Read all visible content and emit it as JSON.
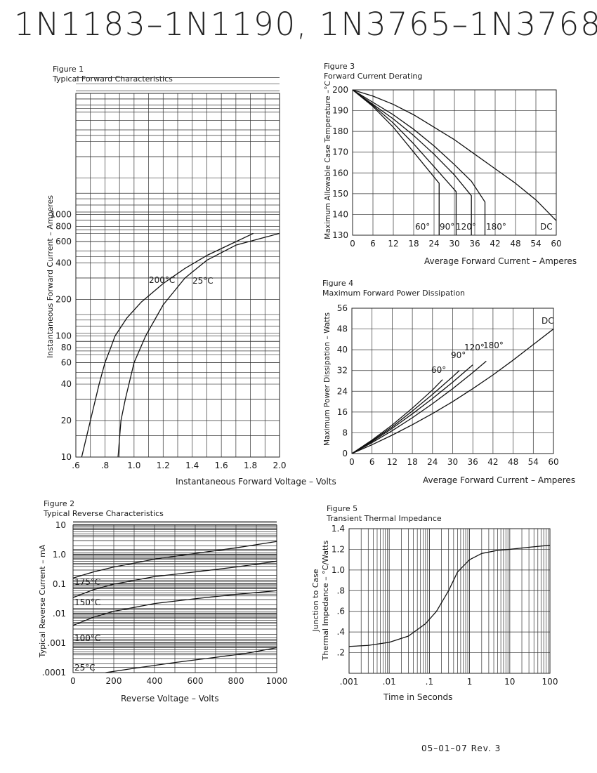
{
  "page_title": "1N1183–1N1190, 1N3765–1N3768",
  "footer": "05–01–07 Rev. 3",
  "figures": {
    "fig1": {
      "number": "Figure 1",
      "caption": "Typical Forward Characteristics"
    },
    "fig2": {
      "number": "Figure 2",
      "caption": "Typical Reverse Characteristics"
    },
    "fig3": {
      "number": "Figure 3",
      "caption": "Forward Current Derating"
    },
    "fig4": {
      "number": "Figure 4",
      "caption": "Maximum Forward Power Dissipation"
    },
    "fig5": {
      "number": "Figure 5",
      "caption": "Transient Thermal Impedance"
    }
  },
  "chart_data": [
    {
      "id": "fig1",
      "type": "line",
      "title": "Typical Forward Characteristics",
      "xlabel": "Instantaneous Forward Voltage – Volts",
      "ylabel": "Instantaneous Forward Current – Amperes",
      "x_scale": "linear",
      "y_scale": "log",
      "xlim": [
        0.6,
        2.0
      ],
      "ylim": [
        10,
        10000
      ],
      "grid": true,
      "xticks": [
        0.6,
        0.8,
        1.0,
        1.2,
        1.4,
        1.6,
        1.8,
        2.0
      ],
      "xtick_labels": [
        ".6",
        ".8",
        "1.0",
        "1.2",
        "1.4",
        "1.6",
        "1.8",
        "2.0"
      ],
      "yticks": [
        10,
        20,
        40,
        60,
        80,
        100,
        200,
        400,
        600,
        800,
        1000
      ],
      "ytick_labels": [
        "10",
        "20",
        "40",
        "60",
        "80",
        "100",
        "200",
        "400",
        "600",
        "800",
        "1000"
      ],
      "series": [
        {
          "name": "200°C",
          "points": [
            [
              0.64,
              10
            ],
            [
              0.7,
              20
            ],
            [
              0.76,
              40
            ],
            [
              0.8,
              60
            ],
            [
              0.84,
              80
            ],
            [
              0.87,
              100
            ],
            [
              0.95,
              140
            ],
            [
              1.05,
              190
            ],
            [
              1.2,
              270
            ],
            [
              1.35,
              360
            ],
            [
              1.5,
              460
            ],
            [
              1.65,
              560
            ],
            [
              1.82,
              700
            ]
          ]
        },
        {
          "name": "25°C",
          "points": [
            [
              0.89,
              10
            ],
            [
              0.91,
              20
            ],
            [
              0.94,
              30
            ],
            [
              1.0,
              60
            ],
            [
              1.08,
              100
            ],
            [
              1.2,
              180
            ],
            [
              1.35,
              300
            ],
            [
              1.5,
              420
            ],
            [
              1.7,
              560
            ],
            [
              2.0,
              700
            ]
          ]
        }
      ]
    },
    {
      "id": "fig2",
      "type": "line",
      "title": "Typical Reverse Characteristics",
      "xlabel": "Reverse Voltage – Volts",
      "ylabel": "Typical Reverse Current – mA",
      "x_scale": "linear",
      "y_scale": "log",
      "xlim": [
        0,
        1000
      ],
      "ylim": [
        0.0001,
        10
      ],
      "grid": true,
      "xticks": [
        0,
        200,
        400,
        600,
        800,
        1000
      ],
      "xtick_labels": [
        "0",
        "200",
        "400",
        "600",
        "800",
        "1000"
      ],
      "yticks": [
        0.0001,
        0.001,
        0.01,
        0.1,
        1,
        10
      ],
      "ytick_labels": [
        ".0001",
        ".001",
        ".01",
        "0.1",
        "1.0",
        "10"
      ],
      "series": [
        {
          "name": "175°C",
          "points": [
            [
              0,
              0.16
            ],
            [
              100,
              0.26
            ],
            [
              200,
              0.38
            ],
            [
              400,
              0.7
            ],
            [
              600,
              1.1
            ],
            [
              800,
              1.7
            ],
            [
              1000,
              2.8
            ]
          ]
        },
        {
          "name": "150°C",
          "points": [
            [
              0,
              0.035
            ],
            [
              100,
              0.065
            ],
            [
              200,
              0.1
            ],
            [
              400,
              0.18
            ],
            [
              600,
              0.26
            ],
            [
              800,
              0.38
            ],
            [
              1000,
              0.6
            ]
          ]
        },
        {
          "name": "100°C",
          "points": [
            [
              0,
              0.004
            ],
            [
              100,
              0.0075
            ],
            [
              200,
              0.012
            ],
            [
              400,
              0.022
            ],
            [
              600,
              0.032
            ],
            [
              800,
              0.045
            ],
            [
              1000,
              0.06
            ]
          ]
        },
        {
          "name": "25°C",
          "points": [
            [
              160,
              0.0001
            ],
            [
              300,
              0.00014
            ],
            [
              500,
              0.00022
            ],
            [
              700,
              0.00033
            ],
            [
              850,
              0.00045
            ],
            [
              1000,
              0.0007
            ]
          ]
        }
      ]
    },
    {
      "id": "fig3",
      "type": "line",
      "title": "Forward Current Derating",
      "xlabel": "Average Forward Current – Amperes",
      "ylabel": "Maximum Allowable Case Temperature –°C",
      "x_scale": "linear",
      "y_scale": "linear",
      "xlim": [
        0,
        60
      ],
      "ylim": [
        130,
        200
      ],
      "grid": true,
      "xticks": [
        0,
        6,
        12,
        18,
        24,
        30,
        36,
        42,
        48,
        54,
        60
      ],
      "yticks": [
        130,
        140,
        150,
        160,
        170,
        180,
        190,
        200
      ],
      "series": [
        {
          "name": "60°",
          "points": [
            [
              0,
              200
            ],
            [
              6,
              192
            ],
            [
              12,
              182
            ],
            [
              18,
              170
            ],
            [
              25.5,
              155
            ],
            [
              25.5,
              130
            ]
          ]
        },
        {
          "name": "90°",
          "points": [
            [
              0,
              200
            ],
            [
              6,
              192.5
            ],
            [
              12,
              184
            ],
            [
              18,
              174
            ],
            [
              24,
              163
            ],
            [
              30.5,
              151
            ],
            [
              30.5,
              130
            ]
          ]
        },
        {
          "name": "120°",
          "points": [
            [
              0,
              200
            ],
            [
              6,
              193
            ],
            [
              12,
              186
            ],
            [
              18,
              178
            ],
            [
              24,
              169
            ],
            [
              30,
              159
            ],
            [
              35,
              149
            ],
            [
              35,
              130
            ]
          ]
        },
        {
          "name": "180°",
          "points": [
            [
              0,
              200
            ],
            [
              6,
              194
            ],
            [
              12,
              188
            ],
            [
              18,
              181
            ],
            [
              24,
              173
            ],
            [
              30,
              164
            ],
            [
              35,
              156
            ],
            [
              39,
              146
            ],
            [
              39,
              130
            ]
          ]
        },
        {
          "name": "DC",
          "points": [
            [
              0,
              200
            ],
            [
              6,
              197
            ],
            [
              12,
              193
            ],
            [
              18,
              188
            ],
            [
              24,
              182
            ],
            [
              30,
              176
            ],
            [
              36,
              169
            ],
            [
              42,
              162
            ],
            [
              48,
              155
            ],
            [
              54,
              147
            ],
            [
              60,
              137
            ]
          ]
        }
      ]
    },
    {
      "id": "fig4",
      "type": "line",
      "title": "Maximum Forward Power Dissipation",
      "xlabel": "Average Forward Current – Amperes",
      "ylabel": "Maximum Power Dissipation – Watts",
      "x_scale": "linear",
      "y_scale": "linear",
      "xlim": [
        0,
        60
      ],
      "ylim": [
        0,
        56
      ],
      "grid": true,
      "xticks": [
        0,
        6,
        12,
        18,
        24,
        30,
        36,
        42,
        48,
        54,
        60
      ],
      "yticks": [
        0,
        8,
        16,
        24,
        32,
        40,
        48,
        56
      ],
      "series": [
        {
          "name": "60°",
          "points": [
            [
              0,
              0
            ],
            [
              6,
              5.2
            ],
            [
              12,
              11
            ],
            [
              18,
              17.5
            ],
            [
              24,
              24.5
            ],
            [
              27,
              28.5
            ]
          ]
        },
        {
          "name": "90°",
          "points": [
            [
              0,
              0
            ],
            [
              6,
              4.9
            ],
            [
              12,
              10.3
            ],
            [
              18,
              16.4
            ],
            [
              24,
              22.8
            ],
            [
              30,
              29.6
            ],
            [
              32,
              32
            ]
          ]
        },
        {
          "name": "120°",
          "points": [
            [
              0,
              0
            ],
            [
              6,
              4.6
            ],
            [
              12,
              9.7
            ],
            [
              18,
              15.3
            ],
            [
              24,
              21.2
            ],
            [
              30,
              27.5
            ],
            [
              36,
              34.2
            ]
          ]
        },
        {
          "name": "180°",
          "points": [
            [
              0,
              0
            ],
            [
              6,
              4.2
            ],
            [
              12,
              8.8
            ],
            [
              18,
              13.8
            ],
            [
              24,
              19.2
            ],
            [
              30,
              25
            ],
            [
              36,
              31.2
            ],
            [
              40,
              35.6
            ]
          ]
        },
        {
          "name": "DC",
          "points": [
            [
              0,
              0
            ],
            [
              6,
              3.4
            ],
            [
              12,
              7.1
            ],
            [
              18,
              11.1
            ],
            [
              24,
              15.4
            ],
            [
              30,
              20
            ],
            [
              36,
              25
            ],
            [
              42,
              30.3
            ],
            [
              48,
              36
            ],
            [
              54,
              42
            ],
            [
              60,
              48
            ]
          ]
        }
      ]
    },
    {
      "id": "fig5",
      "type": "line",
      "title": "Transient Thermal Impedance",
      "xlabel": "Time in Seconds",
      "ylabel": "Junction to Case Thermal Impedance – °C/Watts",
      "x_scale": "log",
      "y_scale": "linear",
      "xlim": [
        0.001,
        100
      ],
      "ylim": [
        0,
        1.4
      ],
      "grid": true,
      "xticks": [
        0.001,
        0.01,
        0.1,
        1,
        10,
        100
      ],
      "xtick_labels": [
        ".001",
        ".01",
        ".1",
        "1",
        "10",
        "100"
      ],
      "yticks": [
        0.2,
        0.4,
        0.6,
        0.8,
        1.0,
        1.2,
        1.4
      ],
      "ytick_labels": [
        ".2",
        ".4",
        ".6",
        ".8",
        "1.0",
        "1.2",
        "1.4"
      ],
      "series": [
        {
          "name": "",
          "points": [
            [
              0.001,
              0.26
            ],
            [
              0.003,
              0.27
            ],
            [
              0.01,
              0.3
            ],
            [
              0.03,
              0.36
            ],
            [
              0.08,
              0.48
            ],
            [
              0.15,
              0.6
            ],
            [
              0.3,
              0.8
            ],
            [
              0.5,
              0.98
            ],
            [
              1,
              1.1
            ],
            [
              2,
              1.16
            ],
            [
              5,
              1.19
            ],
            [
              10,
              1.2
            ],
            [
              30,
              1.22
            ],
            [
              100,
              1.24
            ]
          ]
        }
      ]
    }
  ]
}
